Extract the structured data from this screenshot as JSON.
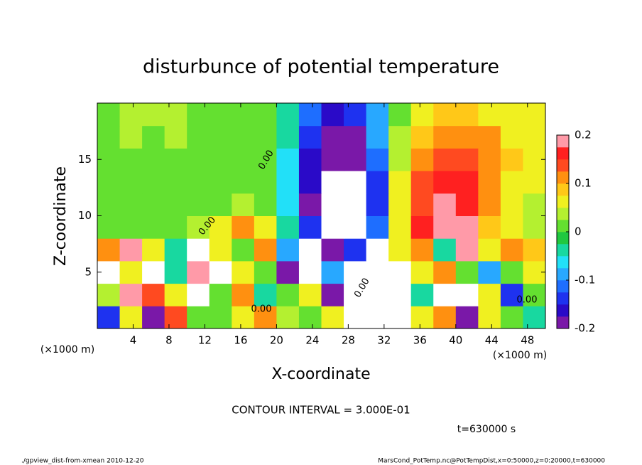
{
  "chart_data": {
    "type": "heatmap",
    "title": "disturbunce of potential temperature",
    "xlabel": "X-coordinate",
    "ylabel": "Z-coordinate",
    "xunit": "(×1000 m)",
    "yunit": "(×1000 m)",
    "xlim": [
      0,
      50
    ],
    "ylim": [
      0,
      20
    ],
    "xticks": [
      4,
      8,
      12,
      16,
      20,
      24,
      28,
      32,
      36,
      40,
      44,
      48
    ],
    "yticks": [
      5,
      10,
      15
    ],
    "x": [
      1.25,
      3.75,
      6.25,
      8.75,
      11.25,
      13.75,
      16.25,
      18.75,
      21.25,
      23.75,
      26.25,
      28.75,
      31.25,
      33.75,
      36.25,
      38.75,
      41.25,
      43.75,
      46.25,
      48.75
    ],
    "y": [
      1,
      3,
      5,
      7,
      9,
      11,
      13,
      15,
      17,
      19
    ],
    "z": [
      [
        -0.15,
        0.05,
        -0.2,
        0.15,
        0.02,
        0.0,
        0.05,
        0.1,
        0.03,
        0,
        0.05,
        0.3,
        0.3,
        0.25,
        0.05,
        0.1,
        -0.2,
        0.05,
        0.02,
        -0.05
      ],
      [
        0.03,
        0.2,
        0.15,
        0.05,
        0.25,
        0,
        0.1,
        -0.05,
        0.02,
        0.05,
        -0.2,
        0.3,
        0.3,
        0.3,
        -0.05,
        0.25,
        0.3,
        0.05,
        -0.15,
        0
      ],
      [
        0.25,
        0.05,
        0.3,
        -0.05,
        0.2,
        0.25,
        0.05,
        0.02,
        -0.2,
        0.3,
        -0.1,
        0.3,
        0.25,
        0.3,
        0.05,
        0.1,
        0.02,
        -0.1,
        0.0,
        0.05
      ],
      [
        0.1,
        0.2,
        0.05,
        -0.05,
        0.25,
        0.05,
        0,
        0.1,
        -0.1,
        0.25,
        -0.2,
        -0.15,
        0.3,
        0.05,
        0.1,
        -0.05,
        0.2,
        0.05,
        0.1,
        0.08
      ],
      [
        0,
        0,
        0,
        0.01,
        0.03,
        0.06,
        0.1,
        0.07,
        -0.05,
        -0.15,
        -0.3,
        -0.28,
        -0.12,
        0.06,
        0.16,
        0.2,
        0.18,
        0.09,
        0.05,
        0.03
      ],
      [
        0,
        0.01,
        0.01,
        0.01,
        0.02,
        0.02,
        0.03,
        0.01,
        -0.07,
        -0.18,
        -0.28,
        -0.26,
        -0.14,
        0.06,
        0.15,
        0.19,
        0.17,
        0.11,
        0.06,
        0.04
      ],
      [
        0.01,
        0.01,
        0.02,
        0.01,
        0.02,
        0.02,
        0.02,
        0,
        -0.07,
        -0.17,
        -0.25,
        -0.25,
        -0.13,
        0.05,
        0.13,
        0.16,
        0.16,
        0.12,
        0.07,
        0.05
      ],
      [
        0.01,
        0.02,
        0.02,
        0.02,
        0.02,
        0.02,
        0.02,
        0,
        -0.06,
        -0.16,
        -0.2,
        -0.2,
        -0.12,
        0.04,
        0.1,
        0.15,
        0.15,
        0.12,
        0.08,
        0.05
      ],
      [
        0.02,
        0.03,
        0.02,
        0.03,
        0.02,
        0.02,
        0.02,
        0.01,
        -0.05,
        -0.15,
        -0.19,
        -0.18,
        -0.1,
        0.03,
        0.08,
        0.12,
        0.12,
        0.1,
        0.07,
        0.05
      ],
      [
        0.02,
        0.03,
        0.03,
        0.03,
        0.02,
        0.02,
        0.02,
        0.01,
        -0.03,
        -0.12,
        -0.16,
        -0.15,
        -0.08,
        0.02,
        0.06,
        0.08,
        0.08,
        0.07,
        0.06,
        0.05
      ]
    ],
    "clim": [
      -0.2,
      0.2
    ],
    "cticks": [
      -0.2,
      -0.1,
      0,
      0.1,
      0.2
    ],
    "colors": [
      "#7a18a8",
      "#2a0ac8",
      "#1e32f0",
      "#1e6eff",
      "#28a8ff",
      "#22e0f8",
      "#18d8a0",
      "#20c840",
      "#64e030",
      "#b4f030",
      "#f0f020",
      "#ffc818",
      "#ff9010",
      "#ff4a20",
      "#ff2020",
      "#ff9aa8"
    ],
    "out_of_range_color": "#ffffff",
    "contour_labels": [
      "0.00",
      "0.00",
      "0.00",
      "0.00",
      "0.00"
    ],
    "contour_interval": "CONTOUR INTERVAL = 3.000E-01",
    "time_label": "t=630000 s",
    "footer_left": "./gpview_dist-from-xmean   2010-12-20",
    "footer_right": "MarsCond_PotTemp.nc@PotTempDist,x=0:50000,z=0:20000,t=630000"
  }
}
